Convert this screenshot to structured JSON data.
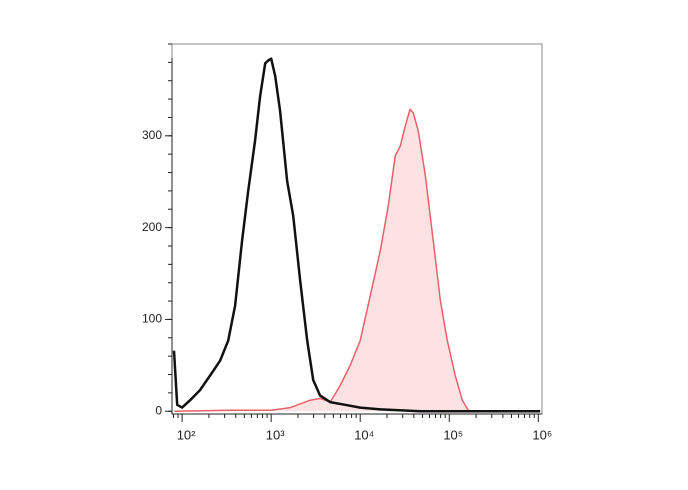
{
  "chart_data": {
    "type": "histogram-line",
    "log_x": true,
    "xlim": [
      77,
      1100000
    ],
    "ylim": [
      -3,
      400
    ],
    "xticks": [
      {
        "value": 100,
        "label": "10²"
      },
      {
        "value": 1000,
        "label": "10³"
      },
      {
        "value": 10000,
        "label": "10⁴"
      },
      {
        "value": 100000,
        "label": "10⁵"
      },
      {
        "value": 1000000,
        "label": "10⁶"
      }
    ],
    "yticks": [
      0,
      100,
      200,
      300
    ],
    "series": [
      {
        "color": "#e8606a",
        "fill": "#fde2e4",
        "x": [
          82,
          346,
          1000,
          1640,
          2750,
          3550,
          4600,
          5960,
          7720,
          10000,
          12980,
          16800,
          20650,
          24740,
          28180,
          32070,
          36350,
          39430,
          44880,
          53750,
          66070,
          79400,
          95000,
          116700,
          140000,
          163400,
          170000
        ],
        "values": [
          0,
          1,
          1,
          4,
          12,
          14,
          10,
          28,
          50,
          77,
          126,
          175,
          224,
          278,
          289,
          311,
          329,
          325,
          305,
          257,
          186,
          121,
          77,
          39,
          12,
          1,
          0
        ]
      },
      {
        "color": "#111111",
        "x": [
          81,
          88,
          100,
          123,
          159,
          207,
          267,
          329,
          394,
          472,
          552,
          661,
          752,
          857,
          926,
          1000,
          1109,
          1260,
          1510,
          1766,
          2118,
          2537,
          2963,
          3548,
          4600,
          6760,
          10000,
          16800,
          47200,
          1050000
        ],
        "values": [
          66,
          7,
          4,
          12,
          23,
          39,
          55,
          77,
          115,
          186,
          240,
          295,
          343,
          379,
          382,
          384,
          365,
          327,
          251,
          213,
          142,
          77,
          34,
          17,
          10,
          7,
          4,
          2,
          0,
          0
        ]
      }
    ]
  }
}
